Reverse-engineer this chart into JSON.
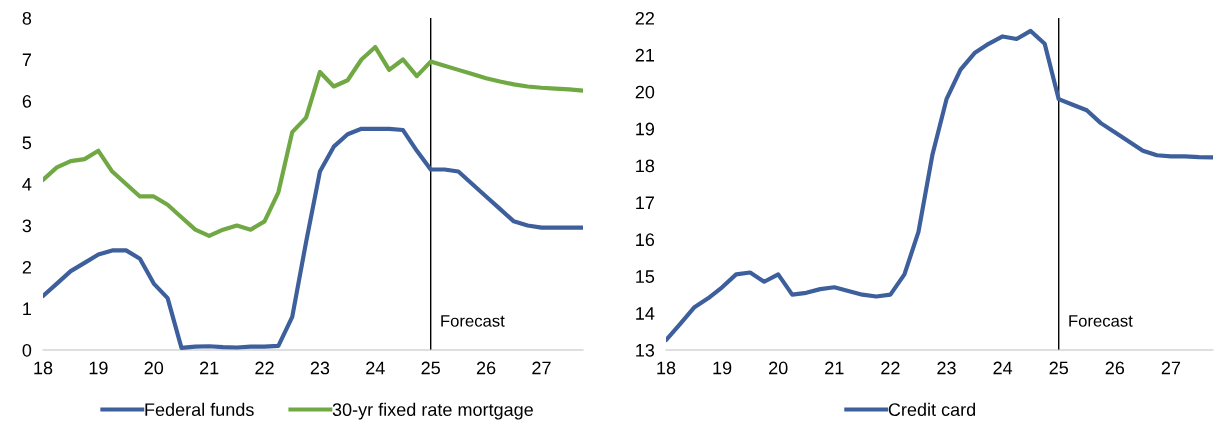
{
  "chart_data": [
    {
      "type": "line",
      "x": [
        18.0,
        18.25,
        18.5,
        18.75,
        19.0,
        19.25,
        19.5,
        19.75,
        20.0,
        20.25,
        20.5,
        20.75,
        21.0,
        21.25,
        21.5,
        21.75,
        22.0,
        22.25,
        22.5,
        22.75,
        23.0,
        23.25,
        23.5,
        23.75,
        24.0,
        24.25,
        24.5,
        24.75,
        25.0,
        25.25,
        25.5,
        25.75,
        26.0,
        26.25,
        26.5,
        26.75,
        27.0,
        27.25,
        27.5,
        27.75
      ],
      "series": [
        {
          "name": "Federal funds",
          "color": "#3d5f9c",
          "values": [
            1.3,
            1.6,
            1.9,
            2.1,
            2.3,
            2.4,
            2.4,
            2.2,
            1.6,
            1.25,
            0.05,
            0.08,
            0.09,
            0.07,
            0.06,
            0.08,
            0.08,
            0.1,
            0.8,
            2.6,
            4.3,
            4.9,
            5.2,
            5.33,
            5.33,
            5.33,
            5.3,
            4.8,
            4.35,
            4.35,
            4.3,
            4.0,
            3.7,
            3.4,
            3.1,
            3.0,
            2.95,
            2.95,
            2.95,
            2.95
          ]
        },
        {
          "name": "30-yr fixed rate mortgage",
          "color": "#70a844",
          "values": [
            4.1,
            4.4,
            4.55,
            4.6,
            4.8,
            4.3,
            4.0,
            3.7,
            3.7,
            3.5,
            3.2,
            2.9,
            2.75,
            2.9,
            3.0,
            2.9,
            3.1,
            3.8,
            5.25,
            5.6,
            6.7,
            6.35,
            6.5,
            7.0,
            7.3,
            6.75,
            7.0,
            6.6,
            6.95,
            6.85,
            6.75,
            6.65,
            6.55,
            6.47,
            6.4,
            6.35,
            6.32,
            6.3,
            6.28,
            6.25
          ]
        }
      ],
      "xlim": [
        18,
        27.75
      ],
      "xticks": [
        18,
        19,
        20,
        21,
        22,
        23,
        24,
        25,
        26,
        27
      ],
      "ylim": [
        0,
        8
      ],
      "yticks": [
        0,
        1,
        2,
        3,
        4,
        5,
        6,
        7,
        8
      ],
      "ref_lines": [
        {
          "axis": "x",
          "value": 25,
          "label": "Forecast",
          "color": "#000000"
        }
      ],
      "legend": "bottom",
      "grid": false
    },
    {
      "type": "line",
      "x": [
        18.0,
        18.25,
        18.5,
        18.75,
        19.0,
        19.25,
        19.5,
        19.75,
        20.0,
        20.25,
        20.5,
        20.75,
        21.0,
        21.25,
        21.5,
        21.75,
        22.0,
        22.25,
        22.5,
        22.75,
        23.0,
        23.25,
        23.5,
        23.75,
        24.0,
        24.25,
        24.5,
        24.75,
        25.0,
        25.25,
        25.5,
        25.75,
        26.0,
        26.25,
        26.5,
        26.75,
        27.0,
        27.25,
        27.5,
        27.75
      ],
      "series": [
        {
          "name": "Credit card",
          "color": "#3d5f9c",
          "values": [
            13.27,
            13.7,
            14.15,
            14.4,
            14.7,
            15.05,
            15.1,
            14.85,
            15.05,
            14.5,
            14.55,
            14.65,
            14.7,
            14.6,
            14.5,
            14.45,
            14.5,
            15.05,
            16.2,
            18.3,
            19.8,
            20.6,
            21.05,
            21.3,
            21.5,
            21.43,
            21.65,
            21.3,
            19.8,
            19.65,
            19.5,
            19.15,
            18.9,
            18.65,
            18.4,
            18.28,
            18.25,
            18.25,
            18.23,
            18.22
          ]
        }
      ],
      "xlim": [
        18,
        27.75
      ],
      "xticks": [
        18,
        19,
        20,
        21,
        22,
        23,
        24,
        25,
        26,
        27
      ],
      "ylim": [
        13,
        22
      ],
      "yticks": [
        13,
        14,
        15,
        16,
        17,
        18,
        19,
        20,
        21,
        22
      ],
      "ref_lines": [
        {
          "axis": "x",
          "value": 25,
          "label": "Forecast",
          "color": "#000000"
        }
      ],
      "legend": "bottom",
      "grid": false
    }
  ]
}
